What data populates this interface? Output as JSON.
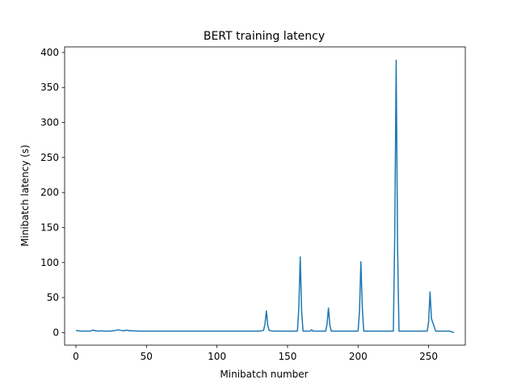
{
  "chart_data": {
    "type": "line",
    "title": "BERT training latency",
    "xlabel": "Minibatch number",
    "ylabel": "Minibatch latency (s)",
    "xlim": [
      -8,
      276
    ],
    "ylim": [
      -18,
      408
    ],
    "xticks": [
      0,
      50,
      100,
      150,
      200,
      250
    ],
    "yticks": [
      0,
      50,
      100,
      150,
      200,
      250,
      300,
      350,
      400
    ],
    "grid": false,
    "color": "#1f77b4",
    "series": [
      {
        "x": [
          0,
          2,
          4,
          6,
          8,
          10,
          12,
          14,
          16,
          18,
          20,
          22,
          24,
          26,
          28,
          30,
          32,
          34,
          36,
          38,
          40,
          45,
          50,
          55,
          60,
          65,
          70,
          75,
          80,
          85,
          90,
          95,
          100,
          105,
          110,
          115,
          120,
          125,
          130,
          133,
          134,
          135,
          136,
          137,
          140,
          145,
          150,
          155,
          157,
          158,
          159,
          160,
          161,
          163,
          166,
          167,
          168,
          170,
          175,
          177,
          178,
          179,
          180,
          181,
          185,
          190,
          195,
          200,
          201,
          202,
          203,
          204,
          205,
          210,
          215,
          220,
          224,
          225,
          226,
          227,
          228,
          229,
          232,
          237,
          242,
          247,
          249,
          250,
          251,
          252,
          255,
          260,
          265,
          268
        ],
        "y": [
          3,
          2.5,
          2,
          2,
          2,
          2,
          3.5,
          2.5,
          2,
          2.5,
          2,
          2,
          2,
          2.5,
          3,
          4,
          3,
          2.5,
          3.5,
          2.5,
          2.5,
          2,
          2,
          2,
          2,
          2,
          2,
          2,
          2,
          2,
          2,
          2,
          2,
          2,
          2,
          2,
          2,
          2,
          2,
          3,
          12,
          31,
          10,
          3,
          2,
          2,
          2,
          2,
          2,
          35,
          108,
          30,
          2,
          2,
          2,
          4,
          2,
          2,
          2,
          2,
          12,
          35,
          10,
          2,
          2,
          2,
          2,
          2,
          30,
          101,
          35,
          2,
          2,
          2,
          2,
          2,
          2,
          2,
          140,
          389,
          120,
          2,
          2,
          2,
          2,
          2,
          2,
          15,
          58,
          20,
          2,
          2,
          2,
          0
        ]
      }
    ]
  }
}
